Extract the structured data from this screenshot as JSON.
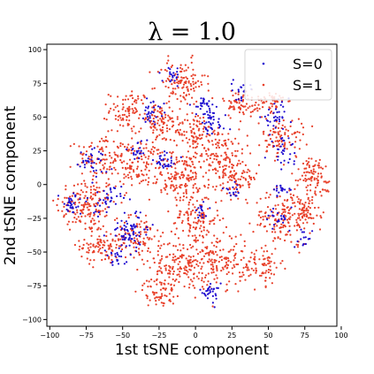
{
  "chart_data": {
    "type": "scatter",
    "title": "λ = 1.0",
    "xlabel": "1st tSNE component",
    "ylabel": "2nd tSNE component",
    "xlim": [
      -102,
      97
    ],
    "ylim": [
      -105,
      104
    ],
    "xticks": [
      -100,
      -75,
      -50,
      -25,
      0,
      25,
      50,
      75,
      100
    ],
    "yticks": [
      -100,
      -75,
      -50,
      -25,
      0,
      25,
      50,
      75,
      100
    ],
    "grid": false,
    "legend_position": "top-right",
    "legend": [
      "S=0",
      "S=1"
    ],
    "series": [
      {
        "name": "S=0",
        "color": "#1f0dd0",
        "clusters": [
          {
            "cx": -85,
            "cy": -15,
            "r": 6,
            "n": 30
          },
          {
            "cx": -70,
            "cy": 18,
            "r": 7,
            "n": 35
          },
          {
            "cx": -62,
            "cy": -12,
            "r": 8,
            "n": 40
          },
          {
            "cx": -45,
            "cy": -35,
            "r": 10,
            "n": 70
          },
          {
            "cx": -55,
            "cy": -55,
            "r": 5,
            "n": 20
          },
          {
            "cx": -30,
            "cy": 55,
            "r": 6,
            "n": 30
          },
          {
            "cx": -15,
            "cy": 80,
            "r": 5,
            "n": 20
          },
          {
            "cx": 5,
            "cy": 60,
            "r": 6,
            "n": 25
          },
          {
            "cx": 10,
            "cy": 45,
            "r": 8,
            "n": 40
          },
          {
            "cx": -20,
            "cy": 18,
            "r": 6,
            "n": 30
          },
          {
            "cx": -40,
            "cy": 25,
            "r": 5,
            "n": 20
          },
          {
            "cx": 5,
            "cy": -20,
            "r": 4,
            "n": 15
          },
          {
            "cx": 10,
            "cy": -80,
            "r": 5,
            "n": 30
          },
          {
            "cx": 30,
            "cy": 70,
            "r": 5,
            "n": 18
          },
          {
            "cx": 55,
            "cy": 50,
            "r": 7,
            "n": 35
          },
          {
            "cx": 60,
            "cy": 25,
            "r": 7,
            "n": 30
          },
          {
            "cx": 60,
            "cy": -5,
            "r": 5,
            "n": 20
          },
          {
            "cx": 55,
            "cy": -25,
            "r": 6,
            "n": 20
          },
          {
            "cx": 75,
            "cy": -40,
            "r": 5,
            "n": 15
          },
          {
            "cx": 25,
            "cy": -5,
            "r": 4,
            "n": 15
          }
        ]
      },
      {
        "name": "S=1",
        "color": "#e8402a",
        "clusters": [
          {
            "cx": -75,
            "cy": -15,
            "r": 15,
            "n": 160
          },
          {
            "cx": -65,
            "cy": 20,
            "r": 12,
            "n": 100
          },
          {
            "cx": -65,
            "cy": -45,
            "r": 10,
            "n": 90
          },
          {
            "cx": -40,
            "cy": 15,
            "r": 13,
            "n": 120
          },
          {
            "cx": -40,
            "cy": -40,
            "r": 12,
            "n": 110
          },
          {
            "cx": -45,
            "cy": 55,
            "r": 10,
            "n": 90
          },
          {
            "cx": -25,
            "cy": 45,
            "r": 10,
            "n": 80
          },
          {
            "cx": -10,
            "cy": 75,
            "r": 12,
            "n": 120
          },
          {
            "cx": 0,
            "cy": 40,
            "r": 10,
            "n": 90
          },
          {
            "cx": -12,
            "cy": 5,
            "r": 13,
            "n": 130
          },
          {
            "cx": 15,
            "cy": 20,
            "r": 15,
            "n": 160
          },
          {
            "cx": 30,
            "cy": 5,
            "r": 10,
            "n": 80
          },
          {
            "cx": 0,
            "cy": -25,
            "r": 12,
            "n": 110
          },
          {
            "cx": -10,
            "cy": -60,
            "r": 15,
            "n": 160
          },
          {
            "cx": 15,
            "cy": -55,
            "r": 14,
            "n": 140
          },
          {
            "cx": -25,
            "cy": -80,
            "r": 8,
            "n": 60
          },
          {
            "cx": 30,
            "cy": 60,
            "r": 8,
            "n": 60
          },
          {
            "cx": 50,
            "cy": 60,
            "r": 8,
            "n": 60
          },
          {
            "cx": 60,
            "cy": 35,
            "r": 10,
            "n": 90
          },
          {
            "cx": 80,
            "cy": 5,
            "r": 12,
            "n": 100
          },
          {
            "cx": 60,
            "cy": -25,
            "r": 14,
            "n": 140
          },
          {
            "cx": 45,
            "cy": -60,
            "r": 10,
            "n": 80
          },
          {
            "cx": 75,
            "cy": -20,
            "r": 8,
            "n": 60
          }
        ]
      }
    ]
  }
}
